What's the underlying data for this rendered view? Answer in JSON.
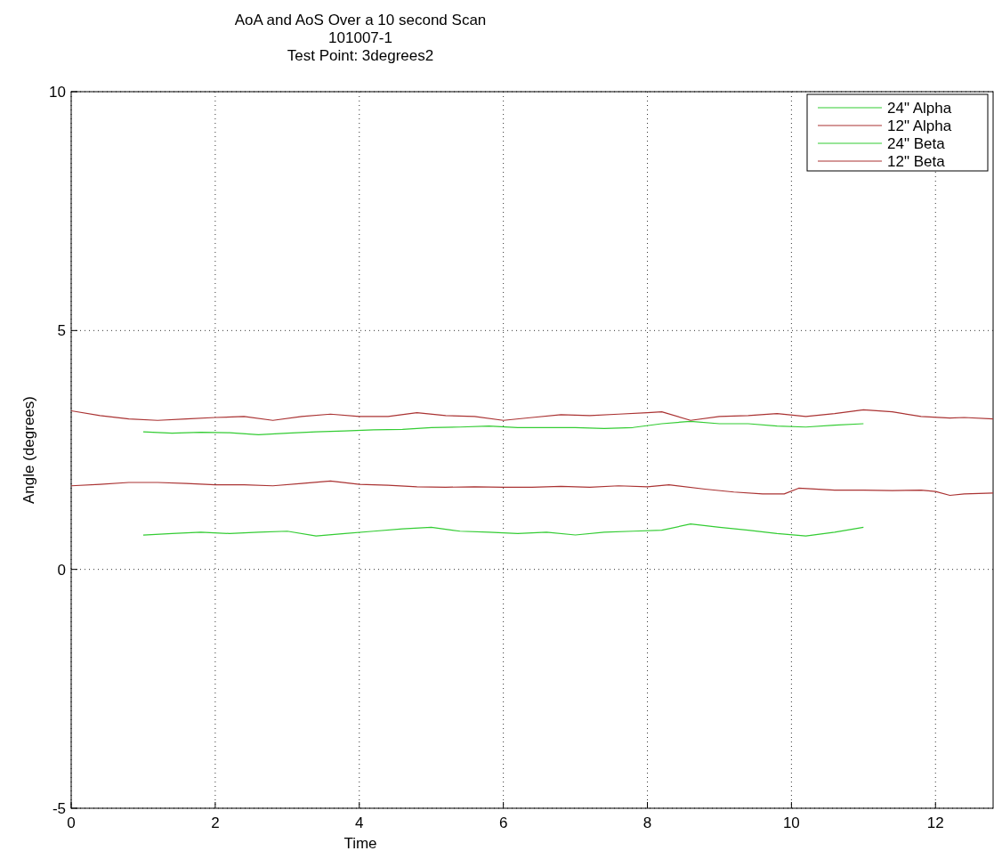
{
  "chart_data": {
    "type": "line",
    "title": "AoA and AoS Over a 10 second Scan\n101007-1\nTest Point: 3degrees2",
    "xlabel": "Time",
    "ylabel": "Angle (degrees)",
    "xlim": [
      0,
      12.8
    ],
    "ylim": [
      -5,
      10
    ],
    "xticks": [
      0,
      2,
      4,
      6,
      8,
      10,
      12
    ],
    "yticks": [
      -5,
      0,
      5,
      10
    ],
    "grid": true,
    "legend": "top right",
    "line_style": "solid",
    "marker": "none",
    "series": [
      {
        "name": "24\" Alpha",
        "color": "#33cc33",
        "x": [
          1,
          1.4,
          1.8,
          2.2,
          2.6,
          3,
          3.4,
          3.8,
          4.2,
          4.6,
          5,
          5.4,
          5.8,
          6.2,
          6.6,
          7,
          7.4,
          7.8,
          8.2,
          8.6,
          9,
          9.4,
          9.8,
          10.2,
          10.6,
          11
        ],
        "values": [
          2.88,
          2.85,
          2.87,
          2.86,
          2.82,
          2.85,
          2.88,
          2.9,
          2.92,
          2.93,
          2.97,
          2.98,
          3,
          2.97,
          2.97,
          2.97,
          2.95,
          2.97,
          3.05,
          3.1,
          3.05,
          3.05,
          3,
          2.98,
          3.02,
          3.05
        ]
      },
      {
        "name": "12\" Alpha",
        "color": "#aa3333",
        "x": [
          0,
          0.4,
          0.8,
          1.2,
          1.6,
          2,
          2.4,
          2.8,
          3.2,
          3.6,
          4,
          4.4,
          4.8,
          5.2,
          5.6,
          6,
          6.4,
          6.8,
          7.2,
          7.6,
          8,
          8.2,
          8.6,
          9,
          9.4,
          9.8,
          10.2,
          10.6,
          11,
          11.4,
          11.8,
          12.2,
          12.4,
          12.8
        ],
        "values": [
          3.32,
          3.22,
          3.15,
          3.12,
          3.15,
          3.18,
          3.2,
          3.12,
          3.2,
          3.25,
          3.2,
          3.2,
          3.28,
          3.22,
          3.2,
          3.12,
          3.18,
          3.24,
          3.22,
          3.25,
          3.28,
          3.3,
          3.12,
          3.2,
          3.22,
          3.26,
          3.2,
          3.26,
          3.34,
          3.3,
          3.2,
          3.17,
          3.18,
          3.15
        ]
      },
      {
        "name": "24\" Beta",
        "color": "#33cc33",
        "x": [
          1,
          1.4,
          1.8,
          2.2,
          2.6,
          3,
          3.4,
          3.8,
          4.2,
          4.6,
          5,
          5.4,
          5.8,
          6.2,
          6.6,
          7,
          7.4,
          7.8,
          8.2,
          8.6,
          9,
          9.4,
          9.8,
          10.2,
          10.6,
          11
        ],
        "values": [
          0.72,
          0.75,
          0.78,
          0.75,
          0.78,
          0.8,
          0.7,
          0.75,
          0.8,
          0.85,
          0.88,
          0.8,
          0.78,
          0.75,
          0.78,
          0.72,
          0.78,
          0.8,
          0.82,
          0.95,
          0.88,
          0.82,
          0.75,
          0.7,
          0.78,
          0.88
        ]
      },
      {
        "name": "12\" Beta",
        "color": "#aa3333",
        "x": [
          0,
          0.4,
          0.8,
          1.2,
          1.6,
          2,
          2.4,
          2.8,
          3.2,
          3.6,
          4,
          4.4,
          4.8,
          5.2,
          5.6,
          6,
          6.4,
          6.8,
          7.2,
          7.6,
          8,
          8.3,
          8.8,
          9.2,
          9.6,
          9.9,
          10.1,
          10.6,
          11,
          11.4,
          11.8,
          12,
          12.2,
          12.4,
          12.8
        ],
        "values": [
          1.75,
          1.78,
          1.82,
          1.82,
          1.8,
          1.77,
          1.77,
          1.75,
          1.8,
          1.85,
          1.78,
          1.76,
          1.73,
          1.72,
          1.73,
          1.72,
          1.72,
          1.74,
          1.72,
          1.75,
          1.73,
          1.77,
          1.68,
          1.62,
          1.58,
          1.58,
          1.7,
          1.66,
          1.66,
          1.65,
          1.66,
          1.63,
          1.55,
          1.58,
          1.6
        ]
      }
    ]
  }
}
